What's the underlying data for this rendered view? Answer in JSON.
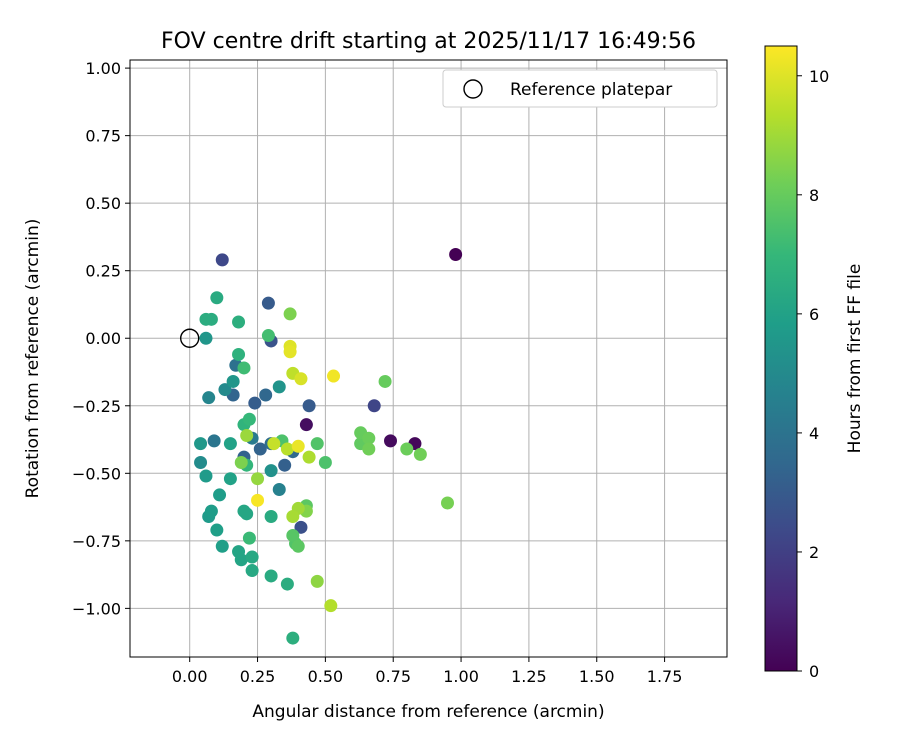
{
  "chart_data": {
    "type": "scatter",
    "title": "FOV centre drift starting at 2025/11/17 16:49:56",
    "xlabel": "Angular distance from reference (arcmin)",
    "ylabel": "Rotation from reference (arcmin)",
    "xlim": [
      -0.22,
      1.98
    ],
    "ylim": [
      -1.18,
      1.03
    ],
    "xticks": [
      0.0,
      0.25,
      0.5,
      0.75,
      1.0,
      1.25,
      1.5,
      1.75
    ],
    "xtick_labels": [
      "0.00",
      "0.25",
      "0.50",
      "0.75",
      "1.00",
      "1.25",
      "1.50",
      "1.75"
    ],
    "yticks": [
      1.0,
      0.75,
      0.5,
      0.25,
      0.0,
      -0.25,
      -0.5,
      -0.75,
      -1.0
    ],
    "ytick_labels": [
      "1.00",
      "0.75",
      "0.50",
      "0.25",
      "0.00",
      "−0.25",
      "−0.50",
      "−0.75",
      "−1.00"
    ],
    "grid": true,
    "legend": {
      "position": "top-right",
      "label": "Reference platepar"
    },
    "reference_point": {
      "x": 0.0,
      "y": 0.0
    },
    "colorbar": {
      "label": "Hours from first FF file",
      "range": [
        0,
        10.5
      ],
      "ticks": [
        0,
        2,
        4,
        6,
        8,
        10
      ],
      "tick_labels": [
        "0",
        "2",
        "4",
        "6",
        "8",
        "10"
      ],
      "colormap": "viridis"
    },
    "points": [
      {
        "x": 0.98,
        "y": 0.31,
        "h": 0.0
      },
      {
        "x": 0.83,
        "y": -0.39,
        "h": 0.2
      },
      {
        "x": 0.74,
        "y": -0.38,
        "h": 0.3
      },
      {
        "x": 0.43,
        "y": -0.32,
        "h": 0.4
      },
      {
        "x": 0.68,
        "y": -0.25,
        "h": 2.2
      },
      {
        "x": 0.12,
        "y": 0.29,
        "h": 2.3
      },
      {
        "x": 0.41,
        "y": -0.7,
        "h": 2.6
      },
      {
        "x": 0.3,
        "y": -0.01,
        "h": 2.7
      },
      {
        "x": 0.29,
        "y": 0.13,
        "h": 3.0
      },
      {
        "x": 0.44,
        "y": -0.25,
        "h": 3.0
      },
      {
        "x": 0.24,
        "y": -0.24,
        "h": 3.1
      },
      {
        "x": 0.35,
        "y": -0.47,
        "h": 3.2
      },
      {
        "x": 0.26,
        "y": -0.41,
        "h": 3.3
      },
      {
        "x": 0.2,
        "y": -0.44,
        "h": 3.3
      },
      {
        "x": 0.16,
        "y": -0.21,
        "h": 3.4
      },
      {
        "x": 0.28,
        "y": -0.21,
        "h": 3.5
      },
      {
        "x": 0.38,
        "y": -0.42,
        "h": 3.6
      },
      {
        "x": 0.3,
        "y": -0.39,
        "h": 3.7
      },
      {
        "x": 0.17,
        "y": -0.1,
        "h": 3.9
      },
      {
        "x": 0.09,
        "y": -0.38,
        "h": 4.1
      },
      {
        "x": 0.23,
        "y": -0.37,
        "h": 4.3
      },
      {
        "x": 0.33,
        "y": -0.56,
        "h": 4.6
      },
      {
        "x": 0.07,
        "y": -0.22,
        "h": 4.8
      },
      {
        "x": 0.13,
        "y": -0.19,
        "h": 5.0
      },
      {
        "x": 0.04,
        "y": -0.46,
        "h": 5.1
      },
      {
        "x": 0.3,
        "y": -0.49,
        "h": 5.3
      },
      {
        "x": 0.33,
        "y": -0.18,
        "h": 5.4
      },
      {
        "x": 0.16,
        "y": -0.16,
        "h": 5.5
      },
      {
        "x": 0.06,
        "y": 0.0,
        "h": 5.5
      },
      {
        "x": 0.04,
        "y": -0.39,
        "h": 5.6
      },
      {
        "x": 0.06,
        "y": -0.51,
        "h": 5.7
      },
      {
        "x": 0.07,
        "y": -0.66,
        "h": 5.7
      },
      {
        "x": 0.08,
        "y": -0.64,
        "h": 5.8
      },
      {
        "x": 0.11,
        "y": -0.58,
        "h": 5.8
      },
      {
        "x": 0.1,
        "y": -0.71,
        "h": 5.9
      },
      {
        "x": 0.12,
        "y": -0.77,
        "h": 5.9
      },
      {
        "x": 0.15,
        "y": -0.52,
        "h": 6.0
      },
      {
        "x": 0.15,
        "y": -0.39,
        "h": 6.0
      },
      {
        "x": 0.18,
        "y": -0.79,
        "h": 6.1
      },
      {
        "x": 0.19,
        "y": -0.82,
        "h": 6.1
      },
      {
        "x": 0.2,
        "y": -0.64,
        "h": 6.2
      },
      {
        "x": 0.21,
        "y": -0.65,
        "h": 6.2
      },
      {
        "x": 0.23,
        "y": -0.81,
        "h": 6.3
      },
      {
        "x": 0.23,
        "y": -0.86,
        "h": 6.3
      },
      {
        "x": 0.3,
        "y": -0.88,
        "h": 6.4
      },
      {
        "x": 0.3,
        "y": -0.66,
        "h": 6.4
      },
      {
        "x": 0.36,
        "y": -0.91,
        "h": 6.5
      },
      {
        "x": 0.38,
        "y": -1.11,
        "h": 6.6
      },
      {
        "x": 0.1,
        "y": 0.15,
        "h": 6.4
      },
      {
        "x": 0.08,
        "y": 0.07,
        "h": 6.5
      },
      {
        "x": 0.06,
        "y": 0.07,
        "h": 6.5
      },
      {
        "x": 0.18,
        "y": 0.06,
        "h": 6.6
      },
      {
        "x": 0.18,
        "y": -0.06,
        "h": 6.7
      },
      {
        "x": 0.2,
        "y": -0.32,
        "h": 6.8
      },
      {
        "x": 0.21,
        "y": -0.47,
        "h": 6.9
      },
      {
        "x": 0.22,
        "y": -0.3,
        "h": 7.0
      },
      {
        "x": 0.22,
        "y": -0.74,
        "h": 7.1
      },
      {
        "x": 0.2,
        "y": -0.11,
        "h": 7.2
      },
      {
        "x": 0.29,
        "y": 0.01,
        "h": 7.3
      },
      {
        "x": 0.34,
        "y": -0.38,
        "h": 7.5
      },
      {
        "x": 0.39,
        "y": -0.76,
        "h": 7.6
      },
      {
        "x": 0.38,
        "y": -0.73,
        "h": 7.7
      },
      {
        "x": 0.4,
        "y": -0.77,
        "h": 7.8
      },
      {
        "x": 0.43,
        "y": -0.62,
        "h": 7.8
      },
      {
        "x": 0.47,
        "y": -0.39,
        "h": 7.6
      },
      {
        "x": 0.5,
        "y": -0.46,
        "h": 7.5
      },
      {
        "x": 0.63,
        "y": -0.39,
        "h": 7.9
      },
      {
        "x": 0.63,
        "y": -0.35,
        "h": 8.0
      },
      {
        "x": 0.66,
        "y": -0.37,
        "h": 8.1
      },
      {
        "x": 0.66,
        "y": -0.41,
        "h": 8.2
      },
      {
        "x": 0.72,
        "y": -0.16,
        "h": 8.0
      },
      {
        "x": 0.8,
        "y": -0.41,
        "h": 8.1
      },
      {
        "x": 0.85,
        "y": -0.43,
        "h": 8.2
      },
      {
        "x": 0.95,
        "y": -0.61,
        "h": 8.3
      },
      {
        "x": 0.37,
        "y": 0.09,
        "h": 8.4
      },
      {
        "x": 0.19,
        "y": -0.46,
        "h": 8.4
      },
      {
        "x": 0.43,
        "y": -0.64,
        "h": 8.5
      },
      {
        "x": 0.47,
        "y": -0.9,
        "h": 8.7
      },
      {
        "x": 0.25,
        "y": -0.52,
        "h": 8.8
      },
      {
        "x": 0.21,
        "y": -0.36,
        "h": 8.9
      },
      {
        "x": 0.4,
        "y": -0.63,
        "h": 9.0
      },
      {
        "x": 0.38,
        "y": -0.66,
        "h": 9.1
      },
      {
        "x": 0.44,
        "y": -0.44,
        "h": 9.2
      },
      {
        "x": 0.52,
        "y": -0.99,
        "h": 9.3
      },
      {
        "x": 0.36,
        "y": -0.41,
        "h": 9.4
      },
      {
        "x": 0.38,
        "y": -0.13,
        "h": 9.5
      },
      {
        "x": 0.31,
        "y": -0.39,
        "h": 9.6
      },
      {
        "x": 0.41,
        "y": -0.15,
        "h": 9.9
      },
      {
        "x": 0.37,
        "y": -0.03,
        "h": 10.0
      },
      {
        "x": 0.37,
        "y": -0.05,
        "h": 10.1
      },
      {
        "x": 0.4,
        "y": -0.4,
        "h": 10.2
      },
      {
        "x": 0.53,
        "y": -0.14,
        "h": 10.3
      },
      {
        "x": 0.25,
        "y": -0.6,
        "h": 10.4
      }
    ]
  }
}
